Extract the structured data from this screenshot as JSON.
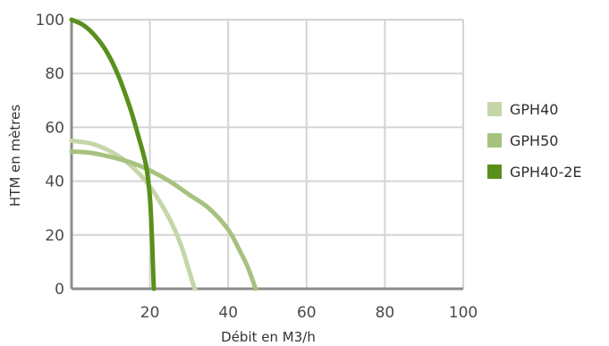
{
  "chart_data": {
    "type": "line",
    "xlabel": "Débit en M3/h",
    "ylabel": "HTM en mètres",
    "xlim": [
      0,
      100
    ],
    "ylim": [
      0,
      100
    ],
    "x_ticks": [
      "0",
      "20",
      "40",
      "60",
      "80",
      "100"
    ],
    "y_ticks": [
      "0",
      "20",
      "40",
      "60",
      "80",
      "100"
    ],
    "grid": true,
    "legend_position": "right",
    "series": [
      {
        "name": "GPH40",
        "color": "#c5d6a8",
        "points": [
          [
            0,
            55
          ],
          [
            5,
            54
          ],
          [
            10,
            51
          ],
          [
            15,
            46
          ],
          [
            20,
            38
          ],
          [
            25,
            26
          ],
          [
            28,
            16
          ],
          [
            31,
            2
          ],
          [
            31.5,
            0
          ]
        ]
      },
      {
        "name": "GPH50",
        "color": "#a7c27f",
        "points": [
          [
            0,
            51
          ],
          [
            5,
            50.5
          ],
          [
            10,
            49
          ],
          [
            15,
            47
          ],
          [
            20,
            44
          ],
          [
            25,
            40
          ],
          [
            30,
            35
          ],
          [
            35,
            30
          ],
          [
            40,
            22
          ],
          [
            43,
            14
          ],
          [
            45,
            8
          ],
          [
            47,
            0
          ]
        ]
      },
      {
        "name": "GPH40-2E",
        "color": "#5a8f1c",
        "points": [
          [
            0,
            100
          ],
          [
            3,
            98
          ],
          [
            6,
            94
          ],
          [
            9,
            88
          ],
          [
            12,
            79
          ],
          [
            15,
            67
          ],
          [
            17,
            57
          ],
          [
            19,
            46
          ],
          [
            20,
            34
          ],
          [
            20.5,
            20
          ],
          [
            20.8,
            8
          ],
          [
            21,
            0
          ]
        ]
      }
    ]
  }
}
